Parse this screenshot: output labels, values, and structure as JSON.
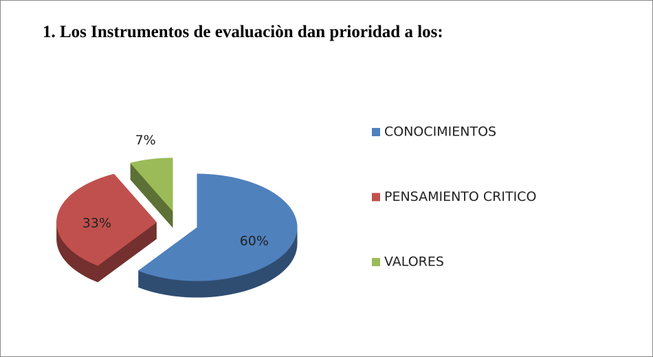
{
  "chart_data": {
    "type": "pie",
    "title": "1. Los Instrumentos de evaluaciòn dan prioridad a los:",
    "categories": [
      "CONOCIMIENTOS",
      "PENSAMIENTO CRITICO",
      "VALORES"
    ],
    "values": [
      60,
      33,
      7
    ],
    "value_labels": [
      "60%",
      "33%",
      "7%"
    ],
    "colors": [
      "#4f81bd",
      "#c0504d",
      "#9bbb59"
    ],
    "legend": "right"
  }
}
